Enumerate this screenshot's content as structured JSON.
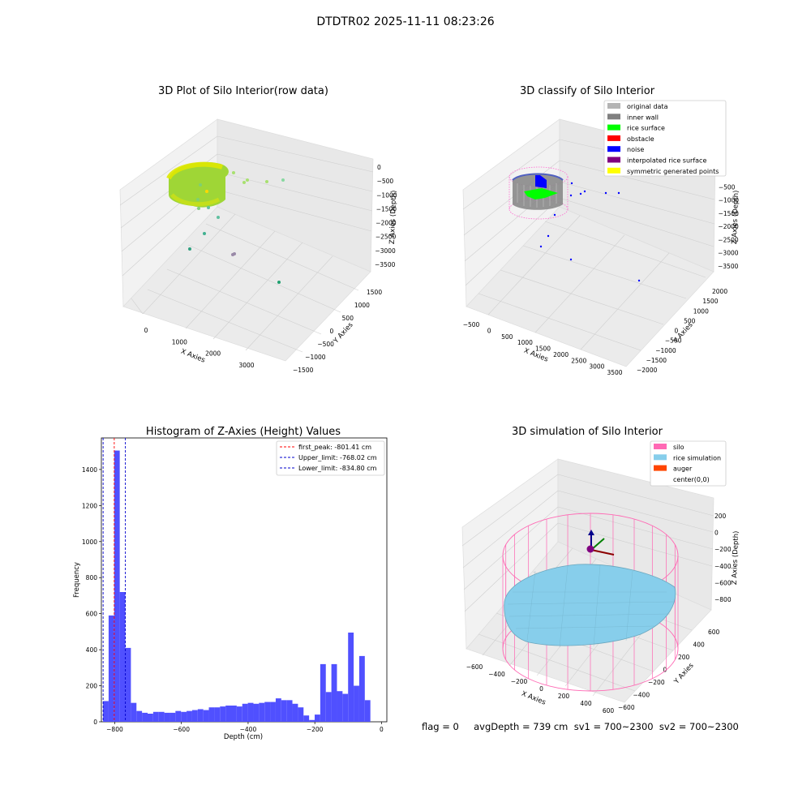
{
  "figure": {
    "suptitle": "DTDTR02 2025-11-11 08:23:26",
    "status_line": "flag = 0     avgDepth = 739 cm  sv1 = 700~2300  sv2 = 700~2300"
  },
  "panels": {
    "raw": {
      "title": "3D Plot of Silo Interior(row data)",
      "xlabel": "X Axies",
      "ylabel": "Y Axies",
      "zlabel": "Z Axies (Depth)",
      "xticks": [
        "0",
        "1000",
        "2000",
        "3000"
      ],
      "yticks": [
        "−1500",
        "−1000",
        "−500",
        "0",
        "500",
        "1000",
        "1500"
      ],
      "zticks": [
        "0",
        "−500",
        "−1000",
        "−1500",
        "−2000",
        "−2500",
        "−3000",
        "−3500"
      ]
    },
    "classify": {
      "title": "3D classify of Silo Interior",
      "xlabel": "X Axies",
      "ylabel": "Y Axies",
      "zlabel": "Z Axies (Depth)",
      "xticks": [
        "−500",
        "0",
        "500",
        "1000",
        "1500",
        "2000",
        "2500",
        "3000",
        "3500"
      ],
      "yticks": [
        "−2000",
        "−1500",
        "−1000",
        "−500",
        "0",
        "500",
        "1000",
        "1500",
        "2000"
      ],
      "zticks": [
        "0",
        "−500",
        "−1000",
        "−1500",
        "−2000",
        "−2500",
        "−3000",
        "−3500"
      ],
      "legend": [
        {
          "label": "original data",
          "color": "#b4b4b4"
        },
        {
          "label": "inner wall",
          "color": "#808080"
        },
        {
          "label": "rice surface",
          "color": "#00ff00"
        },
        {
          "label": "obstacle",
          "color": "#ff0000"
        },
        {
          "label": "noise",
          "color": "#0000ff"
        },
        {
          "label": "interpolated rice surface",
          "color": "#800080"
        },
        {
          "label": "symmetric generated points",
          "color": "#ffff00"
        }
      ]
    },
    "simulation": {
      "title": "3D simulation of Silo Interior",
      "xlabel": "X Axies",
      "ylabel": "Y Axies",
      "zlabel": "Z Axies (Depth)",
      "xticks": [
        "−600",
        "−400",
        "−200",
        "0",
        "200",
        "400",
        "600"
      ],
      "yticks": [
        "−600",
        "−400",
        "−200",
        "0",
        "200",
        "400",
        "600"
      ],
      "zticks": [
        "200",
        "0",
        "−200",
        "−400",
        "−600",
        "−800"
      ],
      "legend": [
        {
          "label": "silo",
          "color": "#ff69b4"
        },
        {
          "label": "rice simulation",
          "color": "#87ceeb"
        },
        {
          "label": "auger",
          "color": "#ff4500"
        },
        {
          "label": "center(0,0)",
          "color": ""
        }
      ]
    }
  },
  "chart_data": {
    "type": "bar",
    "title": "Histogram of Z-Axies (Height) Values",
    "xlabel": "Depth (cm)",
    "ylabel": "Frequency",
    "xlim": [
      -840,
      16
    ],
    "ylim": [
      0,
      1575
    ],
    "xticks": [
      -800,
      -600,
      -400,
      -200,
      0
    ],
    "xtick_labels": [
      "−800",
      "−600",
      "−400",
      "−200",
      "0"
    ],
    "yticks": [
      0,
      200,
      400,
      600,
      800,
      1000,
      1200,
      1400
    ],
    "bar_color": "#5050ff",
    "bins": {
      "start": -835,
      "width": 16.7,
      "values": [
        115,
        590,
        1505,
        720,
        410,
        105,
        60,
        50,
        45,
        55,
        55,
        50,
        50,
        60,
        55,
        60,
        65,
        70,
        65,
        80,
        80,
        85,
        90,
        90,
        85,
        100,
        105,
        100,
        105,
        110,
        110,
        130,
        120,
        120,
        100,
        80,
        35,
        10,
        40,
        320,
        165,
        320,
        170,
        155,
        495,
        200,
        365,
        120
      ]
    },
    "vlines": [
      {
        "x": -801.41,
        "color": "#ff0000",
        "label": "first_peak: -801.41 cm"
      },
      {
        "x": -768.02,
        "color": "#0000cc",
        "label": "Upper_limit: -768.02 cm"
      },
      {
        "x": -834.8,
        "color": "#0000cc",
        "label": "Lower_limit: -834.80 cm"
      }
    ],
    "legend_position": "upper right"
  }
}
